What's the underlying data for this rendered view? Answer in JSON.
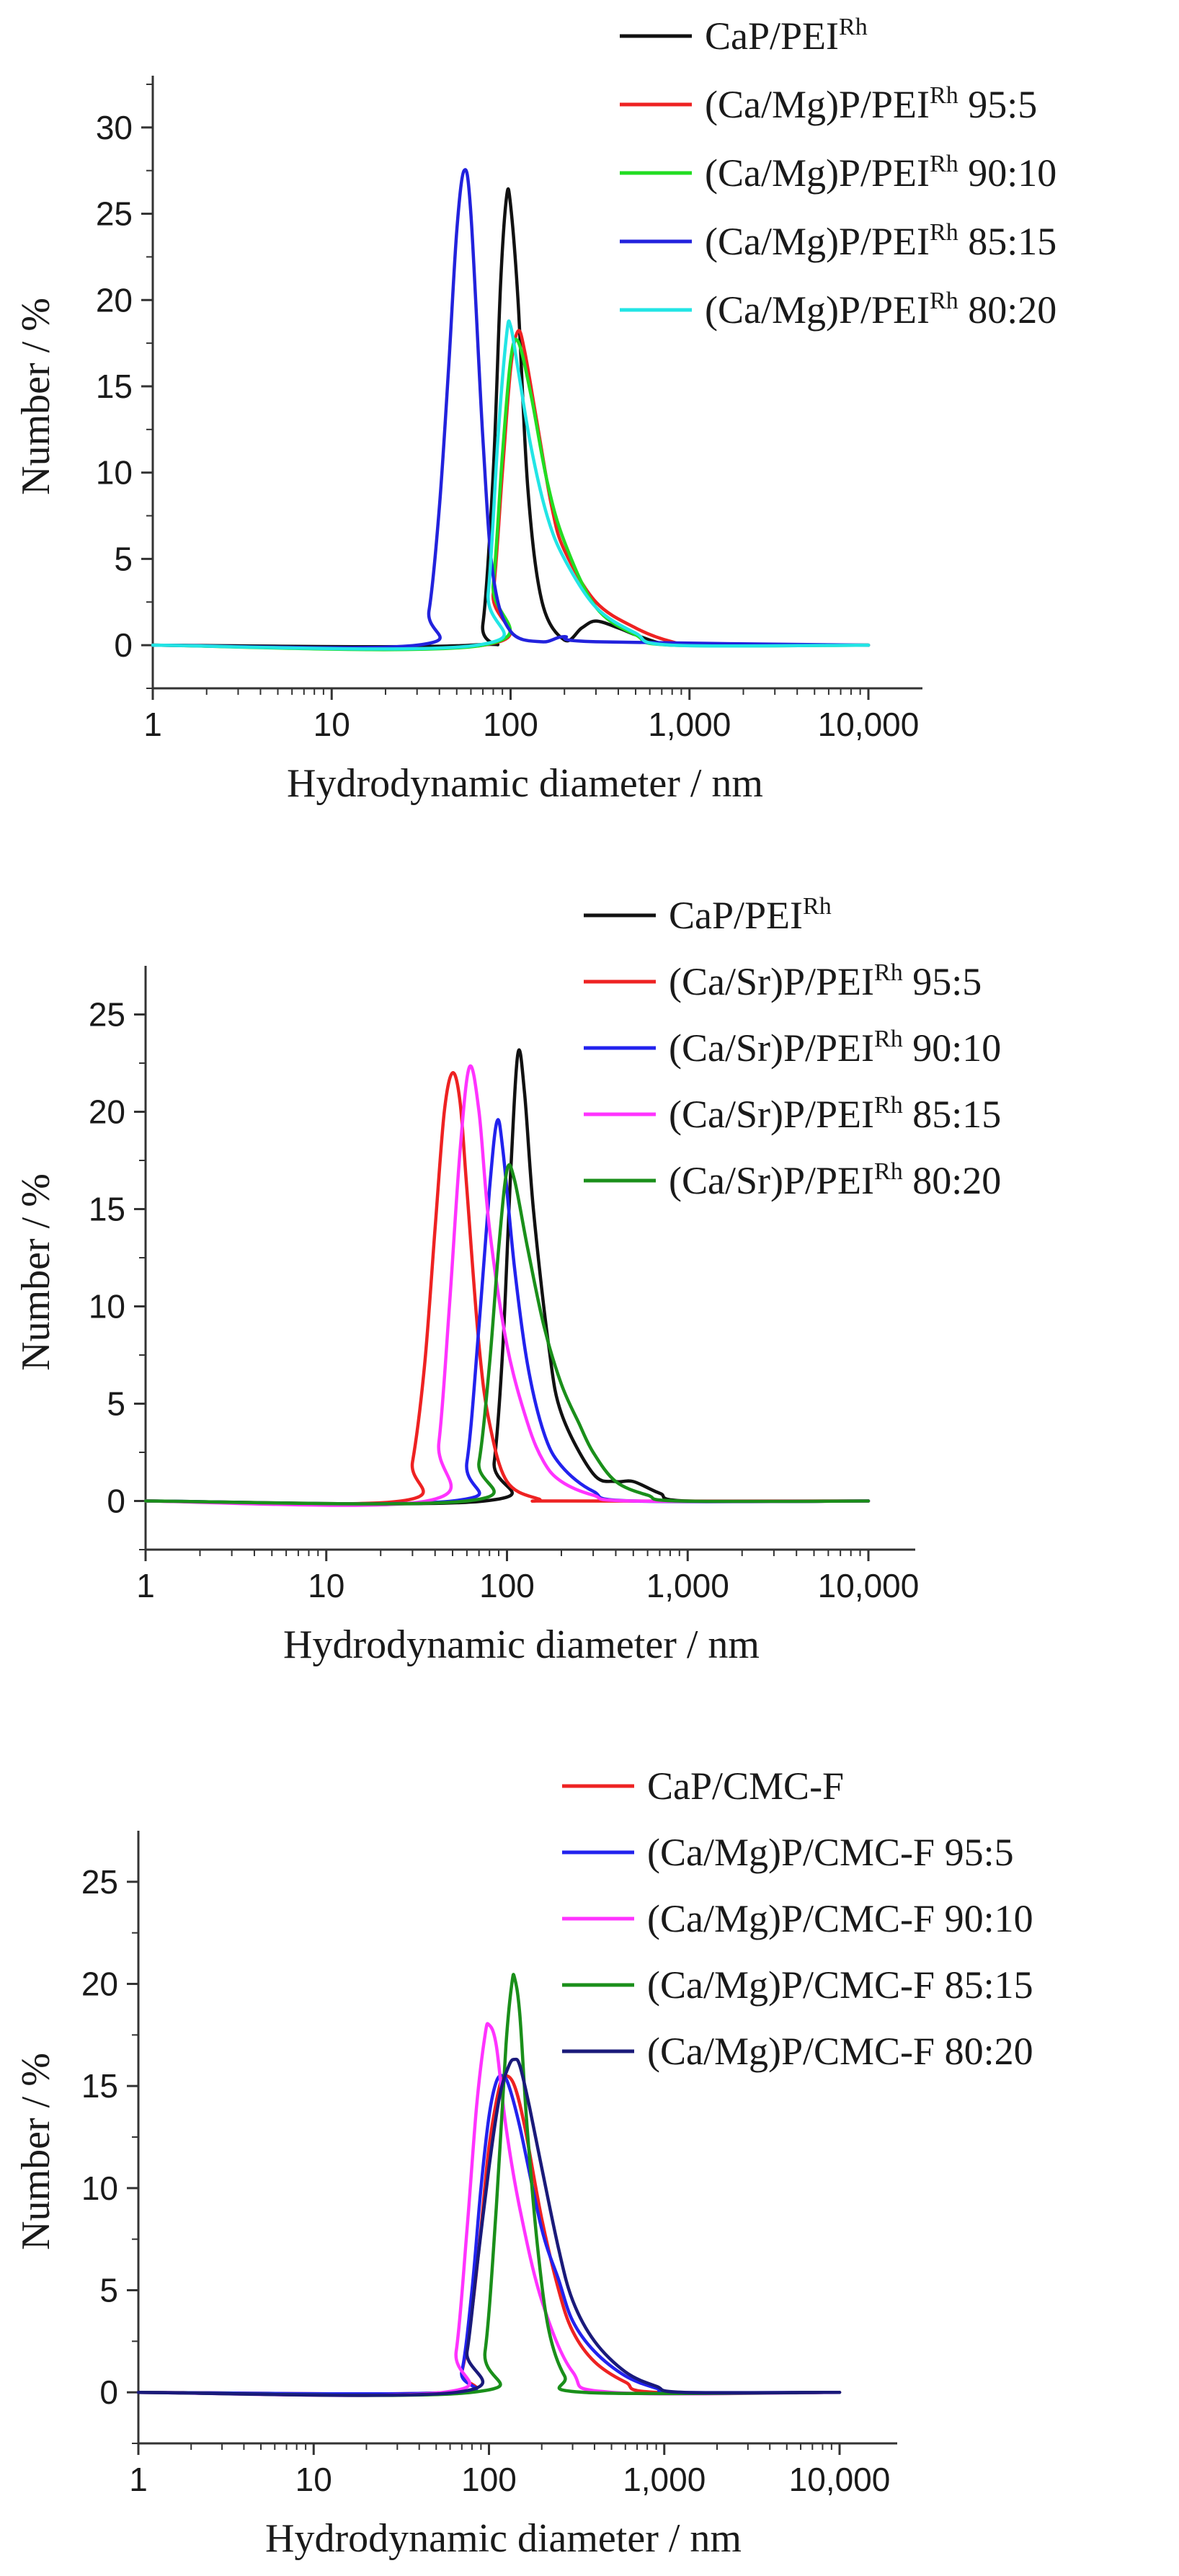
{
  "chart_data": [
    {
      "type": "line",
      "xscale": "log",
      "xlabel": "Hydrodynamic diameter / nm",
      "ylabel": "Number / %",
      "xlim": [
        1,
        10000
      ],
      "ylim": [
        -2.5,
        33
      ],
      "xticks": [
        1,
        10,
        100,
        1000,
        10000
      ],
      "xtick_labels": [
        "1",
        "10",
        "100",
        "1,000",
        "10,000"
      ],
      "yticks": [
        0,
        5,
        10,
        15,
        20,
        25,
        30
      ],
      "ytick_labels": [
        "0",
        "5",
        "10",
        "15",
        "20",
        "25",
        "30"
      ],
      "legend_position": "top-right",
      "series": [
        {
          "name": "CaP/PEI",
          "sup": "Rh",
          "color": "#111111",
          "x": [
            1,
            60,
            70,
            80,
            88,
            95,
            100,
            110,
            125,
            150,
            200,
            250,
            300,
            400,
            500,
            700,
            1000,
            10000
          ],
          "y": [
            0,
            0,
            1.2,
            10,
            21,
            26,
            25.5,
            20,
            9,
            2.5,
            0.3,
            1,
            1.4,
            1,
            0.6,
            0.1,
            0,
            0
          ]
        },
        {
          "name": "(Ca/Mg)P/PEI",
          "sup": "Rh",
          "suffix": "95:5",
          "color": "#ee2222",
          "x": [
            1,
            70,
            80,
            90,
            100,
            110,
            120,
            140,
            170,
            200,
            300,
            500,
            800,
            1200,
            10000
          ],
          "y": [
            0,
            0,
            3,
            10,
            16,
            18.2,
            17,
            13,
            8,
            5.5,
            2.5,
            1,
            0.2,
            0,
            0
          ]
        },
        {
          "name": "(Ca/Mg)P/PEI",
          "sup": "Rh",
          "suffix": "90:10",
          "color": "#22dd22",
          "x": [
            1,
            70,
            80,
            90,
            100,
            110,
            130,
            160,
            200,
            300,
            500,
            800,
            10000
          ],
          "y": [
            0,
            0,
            3.5,
            11,
            16.5,
            17.6,
            14.5,
            9.5,
            6,
            2.2,
            0.6,
            0,
            0
          ]
        },
        {
          "name": "(Ca/Mg)P/PEI",
          "sup": "Rh",
          "suffix": "85:15",
          "color": "#2222dd",
          "x": [
            1,
            30,
            35,
            40,
            45,
            50,
            55,
            60,
            70,
            80,
            100,
            150,
            200,
            300,
            10000
          ],
          "y": [
            0,
            0,
            2,
            8,
            16,
            24,
            27.5,
            25,
            12,
            4,
            0.8,
            0.2,
            0.5,
            0.2,
            0
          ]
        },
        {
          "name": "(Ca/Mg)P/PEI",
          "sup": "Rh",
          "suffix": "80:20",
          "color": "#22e5e5",
          "x": [
            1,
            65,
            75,
            85,
            95,
            100,
            110,
            130,
            160,
            200,
            300,
            500,
            800,
            10000
          ],
          "y": [
            0,
            0,
            3,
            12,
            18,
            18.5,
            16,
            11.5,
            7.5,
            5,
            2.2,
            0.7,
            0,
            0
          ]
        }
      ]
    },
    {
      "type": "line",
      "xscale": "log",
      "xlabel": "Hydrodynamic diameter / nm",
      "ylabel": "Number / %",
      "xlim": [
        1,
        10000
      ],
      "ylim": [
        -2.5,
        27.5
      ],
      "xticks": [
        1,
        10,
        100,
        1000,
        10000
      ],
      "xtick_labels": [
        "1",
        "10",
        "100",
        "1,000",
        "10,000"
      ],
      "yticks": [
        0,
        5,
        10,
        15,
        20,
        25
      ],
      "ytick_labels": [
        "0",
        "5",
        "10",
        "15",
        "20",
        "25"
      ],
      "legend_position": "top-right",
      "series": [
        {
          "name": "CaP/PEI",
          "sup": "Rh",
          "color": "#111111",
          "x": [
            1,
            75,
            85,
            95,
            105,
            115,
            125,
            140,
            170,
            200,
            300,
            400,
            500,
            700,
            1000,
            10000
          ],
          "y": [
            0,
            0,
            2,
            8,
            17,
            23,
            21,
            15,
            8,
            4.5,
            1.4,
            1,
            1,
            0.4,
            0,
            0
          ]
        },
        {
          "name": "(Ca/Sr)P/PEI",
          "sup": "Rh",
          "suffix": "95:5",
          "color": "#ee2222",
          "x": [
            1,
            26,
            30,
            35,
            40,
            45,
            50,
            55,
            60,
            70,
            80,
            100,
            150,
            200,
            10000
          ],
          "y": [
            0,
            0,
            2,
            7,
            14,
            20,
            22,
            20.5,
            16,
            8,
            4,
            1,
            0.1,
            0,
            0
          ]
        },
        {
          "name": "(Ca/Sr)P/PEI",
          "sup": "Rh",
          "suffix": "90:10",
          "color": "#2222ee",
          "x": [
            1,
            50,
            60,
            70,
            80,
            88,
            95,
            110,
            130,
            160,
            200,
            300,
            500,
            10000
          ],
          "y": [
            0,
            0,
            2,
            9,
            16,
            19.5,
            18,
            12,
            7,
            3.5,
            1.8,
            0.5,
            0,
            0
          ]
        },
        {
          "name": "(Ca/Sr)P/PEI",
          "sup": "Rh",
          "suffix": "85:15",
          "color": "#ff33ff",
          "x": [
            1,
            36,
            42,
            48,
            55,
            62,
            70,
            80,
            100,
            130,
            160,
            200,
            300,
            500,
            10000
          ],
          "y": [
            0,
            0,
            3,
            10,
            18,
            22.3,
            20,
            14,
            8,
            4,
            2,
            1,
            0.3,
            0,
            0
          ]
        },
        {
          "name": "(Ca/Sr)P/PEI",
          "sup": "Rh",
          "suffix": "80:20",
          "color": "#1a8f1a",
          "x": [
            1,
            60,
            70,
            80,
            90,
            100,
            110,
            130,
            160,
            200,
            250,
            300,
            400,
            600,
            900,
            10000
          ],
          "y": [
            0,
            0,
            2,
            7,
            13,
            17,
            16.5,
            13,
            9,
            6,
            4,
            2.5,
            1,
            0.3,
            0,
            0
          ]
        }
      ]
    },
    {
      "type": "line",
      "xscale": "log",
      "xlabel": "Hydrodynamic diameter / nm",
      "ylabel": "Number / %",
      "xlim": [
        1,
        10000
      ],
      "ylim": [
        -2.5,
        27.5
      ],
      "xticks": [
        1,
        10,
        100,
        1000,
        10000
      ],
      "xtick_labels": [
        "1",
        "10",
        "100",
        "1,000",
        "10,000"
      ],
      "yticks": [
        0,
        5,
        10,
        15,
        20,
        25
      ],
      "ytick_labels": [
        "0",
        "5",
        "10",
        "15",
        "20",
        "25"
      ],
      "legend_position": "top-right",
      "series": [
        {
          "name": "CaP/CMC-F",
          "color": "#ee2222",
          "x": [
            1,
            60,
            70,
            80,
            90,
            100,
            115,
            125,
            140,
            160,
            200,
            250,
            300,
            400,
            600,
            900,
            10000
          ],
          "y": [
            0,
            0,
            1,
            4,
            8,
            12,
            15,
            15.5,
            15,
            13,
            8.5,
            5,
            3,
            1.5,
            0.5,
            0,
            0
          ]
        },
        {
          "name": "(Ca/Mg)P/CMC-F",
          "suffix": "95:5",
          "color": "#2222ee",
          "x": [
            1,
            60,
            70,
            80,
            90,
            100,
            110,
            120,
            130,
            150,
            200,
            250,
            300,
            400,
            600,
            900,
            1200,
            10000
          ],
          "y": [
            0,
            0,
            1,
            5,
            10,
            13.5,
            15.2,
            15.5,
            15,
            13,
            8,
            5.5,
            3.5,
            2,
            0.8,
            0.2,
            0,
            0
          ]
        },
        {
          "name": "(Ca/Mg)P/CMC-F",
          "suffix": "90:10",
          "color": "#ff33ff",
          "x": [
            1,
            55,
            65,
            75,
            85,
            95,
            100,
            110,
            125,
            150,
            200,
            300,
            500,
            10000
          ],
          "y": [
            0,
            0,
            2,
            8,
            14,
            17.5,
            18,
            17,
            13,
            9,
            4.5,
            1,
            0,
            0
          ]
        },
        {
          "name": "(Ca/Mg)P/CMC-F",
          "suffix": "85:15",
          "color": "#1a8f1a",
          "x": [
            1,
            80,
            95,
            110,
            125,
            135,
            140,
            150,
            165,
            190,
            220,
            270,
            350,
            10000
          ],
          "y": [
            0,
            0,
            2,
            9,
            17,
            20,
            20.3,
            18.5,
            13,
            7,
            3,
            0.8,
            0,
            0
          ]
        },
        {
          "name": "(Ca/Mg)P/CMC-F",
          "suffix": "80:20",
          "color": "#1a1a7a",
          "x": [
            1,
            65,
            75,
            85,
            100,
            115,
            130,
            140,
            150,
            170,
            200,
            250,
            300,
            400,
            600,
            900,
            1300,
            10000
          ],
          "y": [
            0,
            0,
            2,
            6,
            11,
            14.5,
            16,
            16.3,
            16,
            14,
            11,
            7,
            4.5,
            2.5,
            1,
            0.3,
            0,
            0
          ]
        }
      ]
    }
  ]
}
